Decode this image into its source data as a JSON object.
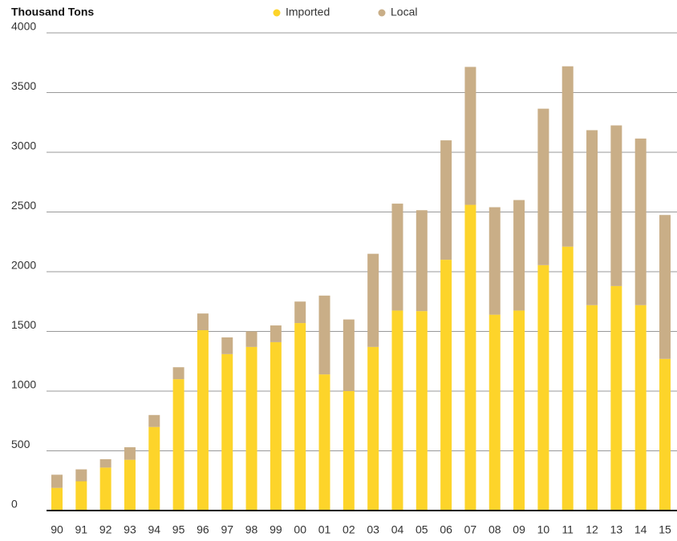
{
  "chart_data": {
    "type": "stacked_bar",
    "y_axis_label": "Thousand Tons",
    "categories": [
      "90",
      "91",
      "92",
      "93",
      "94",
      "95",
      "96",
      "97",
      "98",
      "99",
      "00",
      "01",
      "02",
      "03",
      "04",
      "05",
      "06",
      "07",
      "08",
      "09",
      "10",
      "11",
      "12",
      "13",
      "14",
      "15"
    ],
    "series": [
      {
        "name": "Imported",
        "color": "#fdd42a",
        "values": [
          190,
          245,
          360,
          425,
          700,
          1100,
          1510,
          1310,
          1370,
          1410,
          1570,
          1140,
          1000,
          1370,
          1675,
          1670,
          2100,
          2560,
          1640,
          1675,
          2055,
          2210,
          1720,
          1880,
          1720,
          1270
        ]
      },
      {
        "name": "Local",
        "color": "#c9ae87",
        "values": [
          110,
          100,
          70,
          105,
          100,
          100,
          140,
          140,
          130,
          140,
          180,
          660,
          600,
          780,
          895,
          845,
          1000,
          1155,
          900,
          925,
          1310,
          1510,
          1465,
          1345,
          1395,
          1205
        ]
      }
    ],
    "ylim": [
      0,
      4000
    ],
    "yticks": [
      0,
      500,
      1000,
      1500,
      2000,
      2500,
      3000,
      3500,
      4000
    ],
    "grid": true,
    "legend": "top"
  }
}
